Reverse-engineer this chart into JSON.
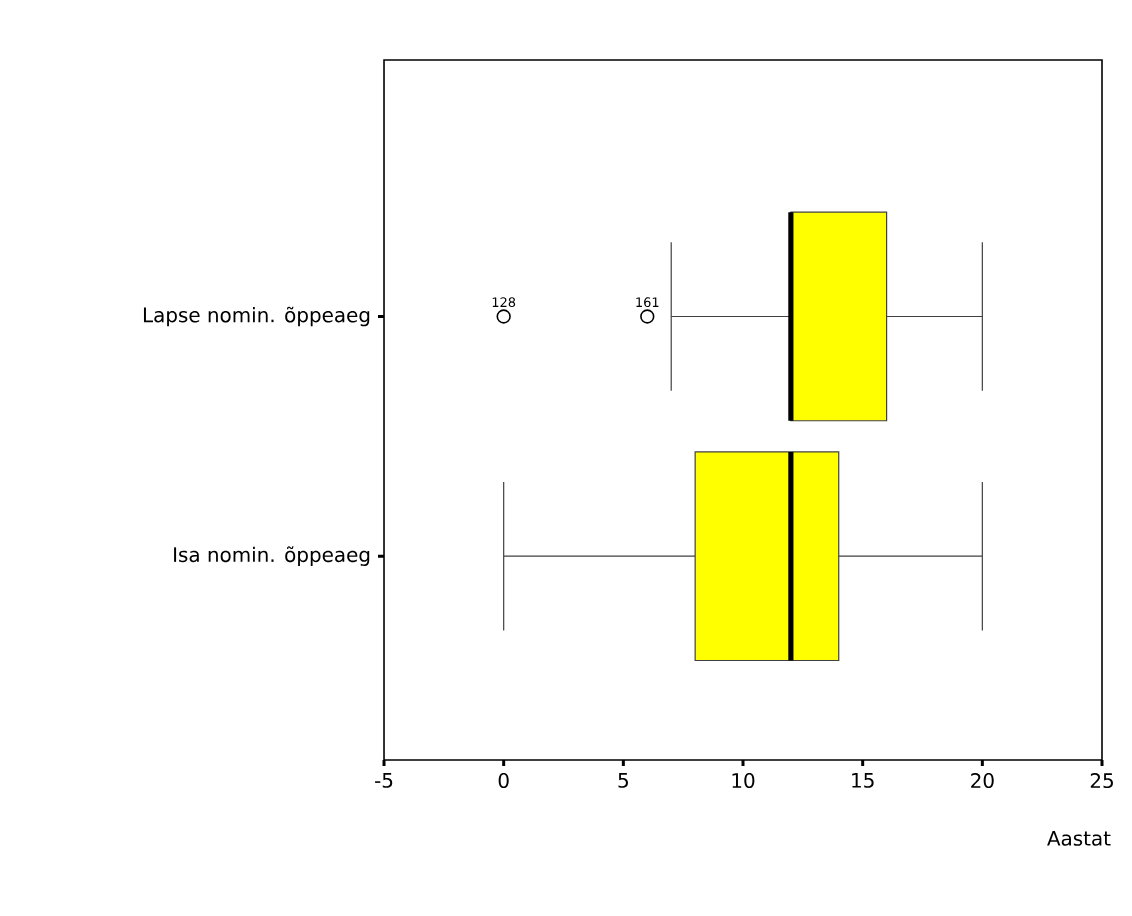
{
  "chart_data": {
    "type": "box",
    "orientation": "horizontal",
    "xlabel": "Aastat",
    "categories": [
      "Lapse nomin. õppeaeg",
      "Isa nomin. õppeaeg"
    ],
    "boxes": [
      {
        "low": 7,
        "q1": 12,
        "median": 12,
        "q3": 16,
        "high": 20,
        "outliers": [
          0,
          6
        ]
      },
      {
        "low": 0,
        "q1": 8,
        "median": 12,
        "q3": 14,
        "high": 20
      }
    ],
    "color": "#ffff00",
    "xlim": [
      -5,
      25
    ],
    "xticks": [
      -5,
      0,
      5,
      10,
      15,
      20,
      25
    ],
    "annotations": [
      "128",
      "161"
    ],
    "grid": false
  }
}
